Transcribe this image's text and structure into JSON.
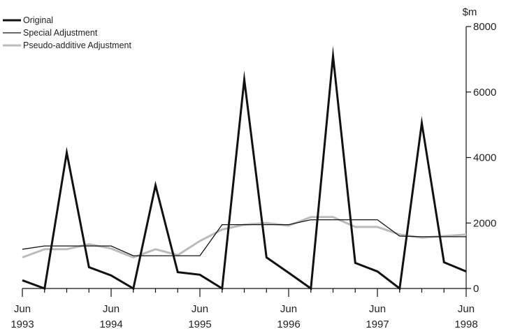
{
  "chart_data": {
    "type": "line",
    "unit": "$m",
    "x": [
      "Jun 1993",
      "Sep 1993",
      "Dec 1993",
      "Mar 1994",
      "Jun 1994",
      "Sep 1994",
      "Dec 1994",
      "Mar 1995",
      "Jun 1995",
      "Sep 1995",
      "Dec 1995",
      "Mar 1996",
      "Jun 1996",
      "Sep 1996",
      "Dec 1996",
      "Mar 1997",
      "Jun 1997",
      "Sep 1997",
      "Dec 1997",
      "Mar 1998",
      "Jun 1998"
    ],
    "x_ticks": [
      {
        "index": 0,
        "month": "Jun",
        "year": "1993"
      },
      {
        "index": 4,
        "month": "Jun",
        "year": "1994"
      },
      {
        "index": 8,
        "month": "Jun",
        "year": "1995"
      },
      {
        "index": 12,
        "month": "Jun",
        "year": "1996"
      },
      {
        "index": 16,
        "month": "Jun",
        "year": "1997"
      },
      {
        "index": 20,
        "month": "Jun",
        "year": "1998"
      }
    ],
    "y_ticks": [
      0,
      2000,
      4000,
      6000,
      8000
    ],
    "ylim": [
      0,
      8000
    ],
    "y_axis_side": "right",
    "legend_position": "top-left",
    "series": [
      {
        "name": "Original",
        "color": "#111111",
        "width": 3,
        "values": [
          250,
          0,
          4150,
          650,
          400,
          0,
          3150,
          500,
          420,
          0,
          6380,
          950,
          480,
          0,
          7100,
          780,
          520,
          0,
          5050,
          800,
          520
        ]
      },
      {
        "name": "Special Adjustment",
        "color": "#111111",
        "width": 1.3,
        "values": [
          1200,
          1300,
          1300,
          1300,
          1300,
          1000,
          1000,
          1000,
          1000,
          1950,
          1950,
          1950,
          1950,
          2100,
          2100,
          2100,
          2100,
          1600,
          1580,
          1580,
          1580
        ]
      },
      {
        "name": "Pseudo-additive Adjustment",
        "color": "#b9bcbf",
        "width": 3,
        "values": [
          950,
          1200,
          1200,
          1350,
          1220,
          950,
          1200,
          1020,
          1450,
          1800,
          1950,
          2000,
          1920,
          2180,
          2180,
          1880,
          1880,
          1650,
          1550,
          1600,
          1650
        ]
      }
    ]
  }
}
